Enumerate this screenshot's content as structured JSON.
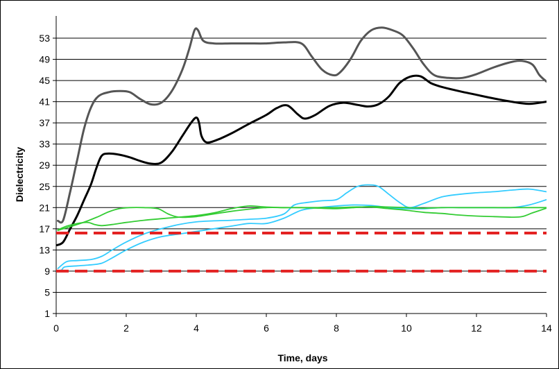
{
  "chart_data": {
    "type": "line",
    "title": "",
    "xlabel": "Time, days",
    "ylabel": "Dielectricity",
    "xlim": [
      0,
      14
    ],
    "ylim": [
      1,
      55
    ],
    "x_ticks": [
      0,
      2,
      4,
      6,
      8,
      10,
      12,
      14
    ],
    "y_ticks": [
      1,
      5,
      9,
      13,
      17,
      21,
      25,
      29,
      33,
      37,
      41,
      45,
      49,
      53
    ],
    "grid": "horizontal",
    "series": [
      {
        "color": "#555555",
        "style": "solid",
        "points": [
          [
            0.05,
            18.5
          ],
          [
            0.2,
            18.6
          ],
          [
            0.4,
            24
          ],
          [
            0.6,
            30
          ],
          [
            0.8,
            36
          ],
          [
            1.0,
            40
          ],
          [
            1.2,
            42
          ],
          [
            1.5,
            42.8
          ],
          [
            1.8,
            43
          ],
          [
            2.1,
            42.8
          ],
          [
            2.4,
            41.5
          ],
          [
            2.7,
            40.5
          ],
          [
            3.0,
            40.8
          ],
          [
            3.3,
            43
          ],
          [
            3.6,
            47
          ],
          [
            3.8,
            51
          ],
          [
            3.95,
            54.5
          ],
          [
            4.05,
            54.5
          ],
          [
            4.2,
            52.5
          ],
          [
            4.5,
            52
          ],
          [
            5.0,
            52
          ],
          [
            5.5,
            52
          ],
          [
            6.0,
            52
          ],
          [
            6.5,
            52.2
          ],
          [
            7.0,
            52
          ],
          [
            7.3,
            49.5
          ],
          [
            7.6,
            47
          ],
          [
            7.9,
            46
          ],
          [
            8.1,
            46.5
          ],
          [
            8.4,
            49
          ],
          [
            8.7,
            52.5
          ],
          [
            9.0,
            54.5
          ],
          [
            9.3,
            55
          ],
          [
            9.6,
            54.5
          ],
          [
            9.9,
            53.5
          ],
          [
            10.2,
            51
          ],
          [
            10.5,
            48
          ],
          [
            10.8,
            46
          ],
          [
            11.2,
            45.5
          ],
          [
            11.6,
            45.5
          ],
          [
            12.0,
            46.2
          ],
          [
            12.5,
            47.5
          ],
          [
            13.0,
            48.5
          ],
          [
            13.3,
            48.7
          ],
          [
            13.6,
            48
          ],
          [
            13.8,
            46
          ],
          [
            14.0,
            44.8
          ]
        ]
      },
      {
        "color": "#000000",
        "style": "solid",
        "points": [
          [
            0.02,
            13.9
          ],
          [
            0.2,
            14.5
          ],
          [
            0.4,
            17
          ],
          [
            0.6,
            19.5
          ],
          [
            0.8,
            22.5
          ],
          [
            1.0,
            25.5
          ],
          [
            1.15,
            28.5
          ],
          [
            1.3,
            30.8
          ],
          [
            1.5,
            31.2
          ],
          [
            1.8,
            31
          ],
          [
            2.1,
            30.5
          ],
          [
            2.4,
            29.8
          ],
          [
            2.7,
            29.3
          ],
          [
            3.0,
            29.5
          ],
          [
            3.3,
            31.5
          ],
          [
            3.6,
            34.5
          ],
          [
            3.85,
            37
          ],
          [
            4.0,
            38
          ],
          [
            4.08,
            37
          ],
          [
            4.15,
            34.5
          ],
          [
            4.3,
            33.3
          ],
          [
            4.6,
            33.8
          ],
          [
            5.0,
            35
          ],
          [
            5.5,
            36.8
          ],
          [
            6.0,
            38.5
          ],
          [
            6.3,
            39.8
          ],
          [
            6.6,
            40.3
          ],
          [
            6.9,
            38.6
          ],
          [
            7.1,
            37.8
          ],
          [
            7.4,
            38.5
          ],
          [
            7.8,
            40.2
          ],
          [
            8.2,
            40.8
          ],
          [
            8.6,
            40.4
          ],
          [
            8.9,
            40.1
          ],
          [
            9.2,
            40.5
          ],
          [
            9.5,
            42
          ],
          [
            9.8,
            44.5
          ],
          [
            10.1,
            45.7
          ],
          [
            10.4,
            45.8
          ],
          [
            10.7,
            44.5
          ],
          [
            11.0,
            43.8
          ],
          [
            11.5,
            43
          ],
          [
            12.0,
            42.3
          ],
          [
            12.5,
            41.6
          ],
          [
            13.0,
            41
          ],
          [
            13.5,
            40.6
          ],
          [
            14.0,
            41
          ]
        ]
      },
      {
        "color": "#33ccff",
        "style": "solid",
        "points": [
          [
            0.05,
            9.1
          ],
          [
            0.15,
            9.2
          ],
          [
            0.25,
            9.8
          ],
          [
            0.6,
            10
          ],
          [
            1.0,
            10.2
          ],
          [
            1.3,
            10.5
          ],
          [
            1.6,
            11.5
          ],
          [
            2.0,
            13
          ],
          [
            2.5,
            14.5
          ],
          [
            3.0,
            15.5
          ],
          [
            3.5,
            16
          ],
          [
            4.0,
            16.5
          ],
          [
            4.5,
            17
          ],
          [
            5.0,
            17.5
          ],
          [
            5.5,
            18
          ],
          [
            6.0,
            18
          ],
          [
            6.5,
            19
          ],
          [
            7.0,
            20.5
          ],
          [
            7.5,
            21
          ],
          [
            8.0,
            21.3
          ],
          [
            8.5,
            21.5
          ],
          [
            9.0,
            21.4
          ],
          [
            9.5,
            21
          ],
          [
            10.0,
            20.8
          ],
          [
            10.5,
            20.8
          ],
          [
            11.0,
            21
          ],
          [
            11.5,
            21
          ],
          [
            12.0,
            21
          ],
          [
            12.5,
            21
          ],
          [
            13.0,
            21
          ],
          [
            13.5,
            21.5
          ],
          [
            14.0,
            22.5
          ]
        ]
      },
      {
        "color": "#33ccff",
        "style": "solid",
        "points": [
          [
            0.05,
            9.5
          ],
          [
            0.3,
            10.8
          ],
          [
            0.6,
            11
          ],
          [
            1.0,
            11.2
          ],
          [
            1.3,
            11.8
          ],
          [
            1.6,
            13
          ],
          [
            2.0,
            14.5
          ],
          [
            2.5,
            16
          ],
          [
            3.0,
            17
          ],
          [
            3.5,
            17.8
          ],
          [
            4.0,
            18.3
          ],
          [
            4.5,
            18.5
          ],
          [
            5.0,
            18.6
          ],
          [
            5.5,
            18.8
          ],
          [
            6.0,
            19
          ],
          [
            6.5,
            19.8
          ],
          [
            6.8,
            21.5
          ],
          [
            7.2,
            22
          ],
          [
            7.6,
            22.3
          ],
          [
            8.0,
            22.5
          ],
          [
            8.3,
            23.8
          ],
          [
            8.6,
            25
          ],
          [
            8.9,
            25.3
          ],
          [
            9.2,
            25
          ],
          [
            9.5,
            23.5
          ],
          [
            9.8,
            22
          ],
          [
            10.1,
            21
          ],
          [
            10.5,
            21.8
          ],
          [
            11.0,
            23
          ],
          [
            11.5,
            23.5
          ],
          [
            12.0,
            23.8
          ],
          [
            12.5,
            24
          ],
          [
            13.0,
            24.3
          ],
          [
            13.5,
            24.5
          ],
          [
            14.0,
            24
          ]
        ]
      },
      {
        "color": "#33cc33",
        "style": "solid",
        "points": [
          [
            0.05,
            16.8
          ],
          [
            0.3,
            17.5
          ],
          [
            0.6,
            18
          ],
          [
            0.9,
            18.2
          ],
          [
            1.1,
            17.8
          ],
          [
            1.3,
            17.6
          ],
          [
            1.6,
            17.8
          ],
          [
            2.0,
            18.2
          ],
          [
            2.5,
            18.6
          ],
          [
            3.0,
            18.9
          ],
          [
            3.5,
            19.2
          ],
          [
            4.0,
            19.5
          ],
          [
            4.5,
            20
          ],
          [
            5.0,
            20.8
          ],
          [
            5.5,
            21.3
          ],
          [
            6.0,
            21.1
          ],
          [
            6.5,
            21
          ],
          [
            7.0,
            21
          ],
          [
            7.5,
            21
          ],
          [
            8.0,
            21
          ],
          [
            8.5,
            21.1
          ],
          [
            9.0,
            21.1
          ],
          [
            9.5,
            20.8
          ],
          [
            10.0,
            20.5
          ],
          [
            10.5,
            20.1
          ],
          [
            11.0,
            19.9
          ],
          [
            11.5,
            19.6
          ],
          [
            12.0,
            19.4
          ],
          [
            12.5,
            19.3
          ],
          [
            13.0,
            19.2
          ],
          [
            13.3,
            19.3
          ],
          [
            13.6,
            20
          ],
          [
            14.0,
            20.9
          ]
        ]
      },
      {
        "color": "#33cc33",
        "style": "solid",
        "points": [
          [
            0.05,
            16.7
          ],
          [
            0.3,
            17.2
          ],
          [
            0.6,
            17.8
          ],
          [
            0.9,
            18.5
          ],
          [
            1.2,
            19.3
          ],
          [
            1.5,
            20.2
          ],
          [
            1.8,
            20.8
          ],
          [
            2.1,
            21
          ],
          [
            2.5,
            21
          ],
          [
            2.9,
            20.8
          ],
          [
            3.2,
            19.8
          ],
          [
            3.5,
            19.2
          ],
          [
            4.0,
            19.3
          ],
          [
            4.5,
            19.8
          ],
          [
            5.0,
            20.3
          ],
          [
            5.5,
            20.7
          ],
          [
            6.0,
            21
          ],
          [
            6.5,
            21
          ],
          [
            7.0,
            21
          ],
          [
            7.5,
            20.9
          ],
          [
            8.0,
            20.8
          ],
          [
            8.5,
            21
          ],
          [
            9.0,
            21.2
          ],
          [
            9.5,
            21.1
          ],
          [
            10.0,
            21
          ],
          [
            10.5,
            20.9
          ],
          [
            11.0,
            21
          ],
          [
            11.5,
            21
          ],
          [
            12.0,
            21
          ],
          [
            12.5,
            21
          ],
          [
            13.0,
            21
          ],
          [
            13.5,
            21
          ],
          [
            14.0,
            21
          ]
        ]
      },
      {
        "color": "#e32222",
        "style": "dashed",
        "points": [
          [
            0,
            16.2
          ],
          [
            14,
            16.2
          ]
        ]
      },
      {
        "color": "#e32222",
        "style": "dashed",
        "points": [
          [
            0,
            9
          ],
          [
            14,
            9
          ]
        ]
      }
    ]
  }
}
